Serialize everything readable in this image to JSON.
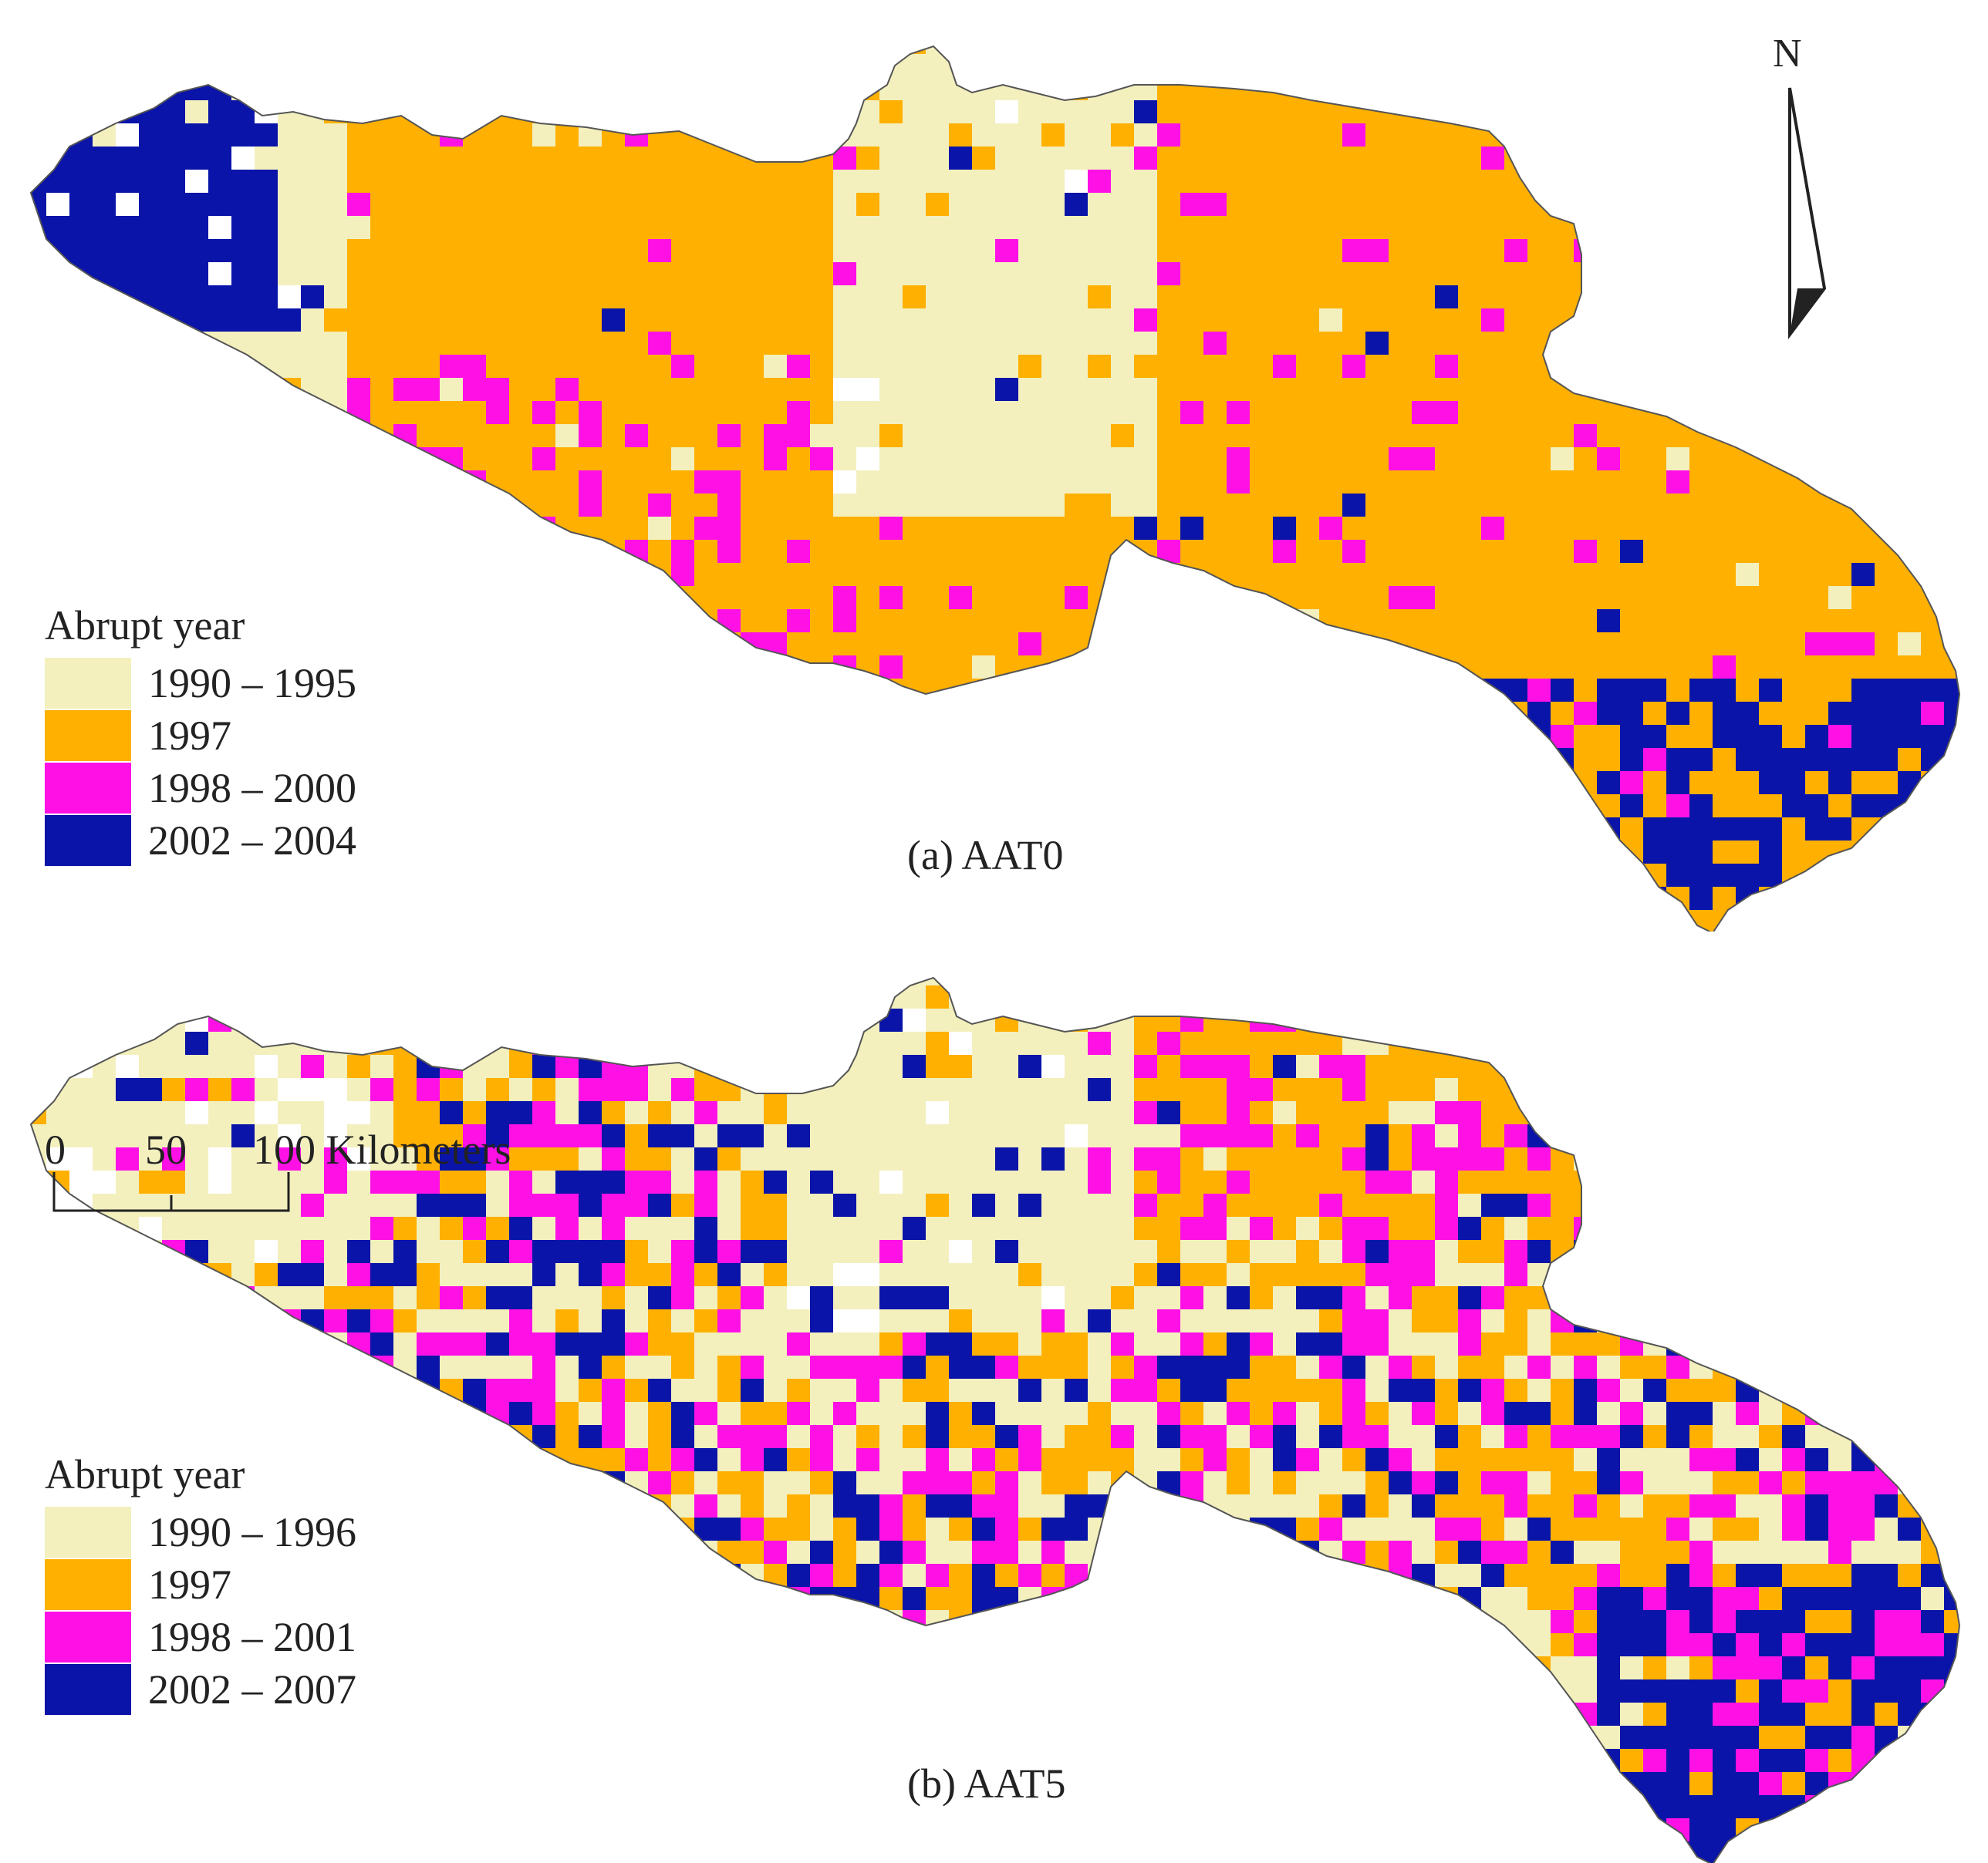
{
  "north_label": "N",
  "panels": [
    {
      "caption": "(a) AAT0",
      "legend_title": "Abrupt year",
      "legend": [
        {
          "label": "1990 – 1995",
          "color": "#f3f0be"
        },
        {
          "label": "1997",
          "color": "#ffb000"
        },
        {
          "label": "1998 – 2000",
          "color": "#ff11e6"
        },
        {
          "label": "2002 – 2004",
          "color": "#0a14a8"
        }
      ]
    },
    {
      "caption": "(b) AAT5",
      "legend_title": "Abrupt year",
      "legend": [
        {
          "label": "1990 – 1996",
          "color": "#f3f0be"
        },
        {
          "label": "1997",
          "color": "#ffb000"
        },
        {
          "label": "1998 – 2001",
          "color": "#ff11e6"
        },
        {
          "label": "2002 – 2007",
          "color": "#0a14a8"
        }
      ]
    }
  ],
  "scale": {
    "ticks": [
      "0",
      "50",
      "100 Kilometers"
    ]
  },
  "boundary_color": "#555555"
}
